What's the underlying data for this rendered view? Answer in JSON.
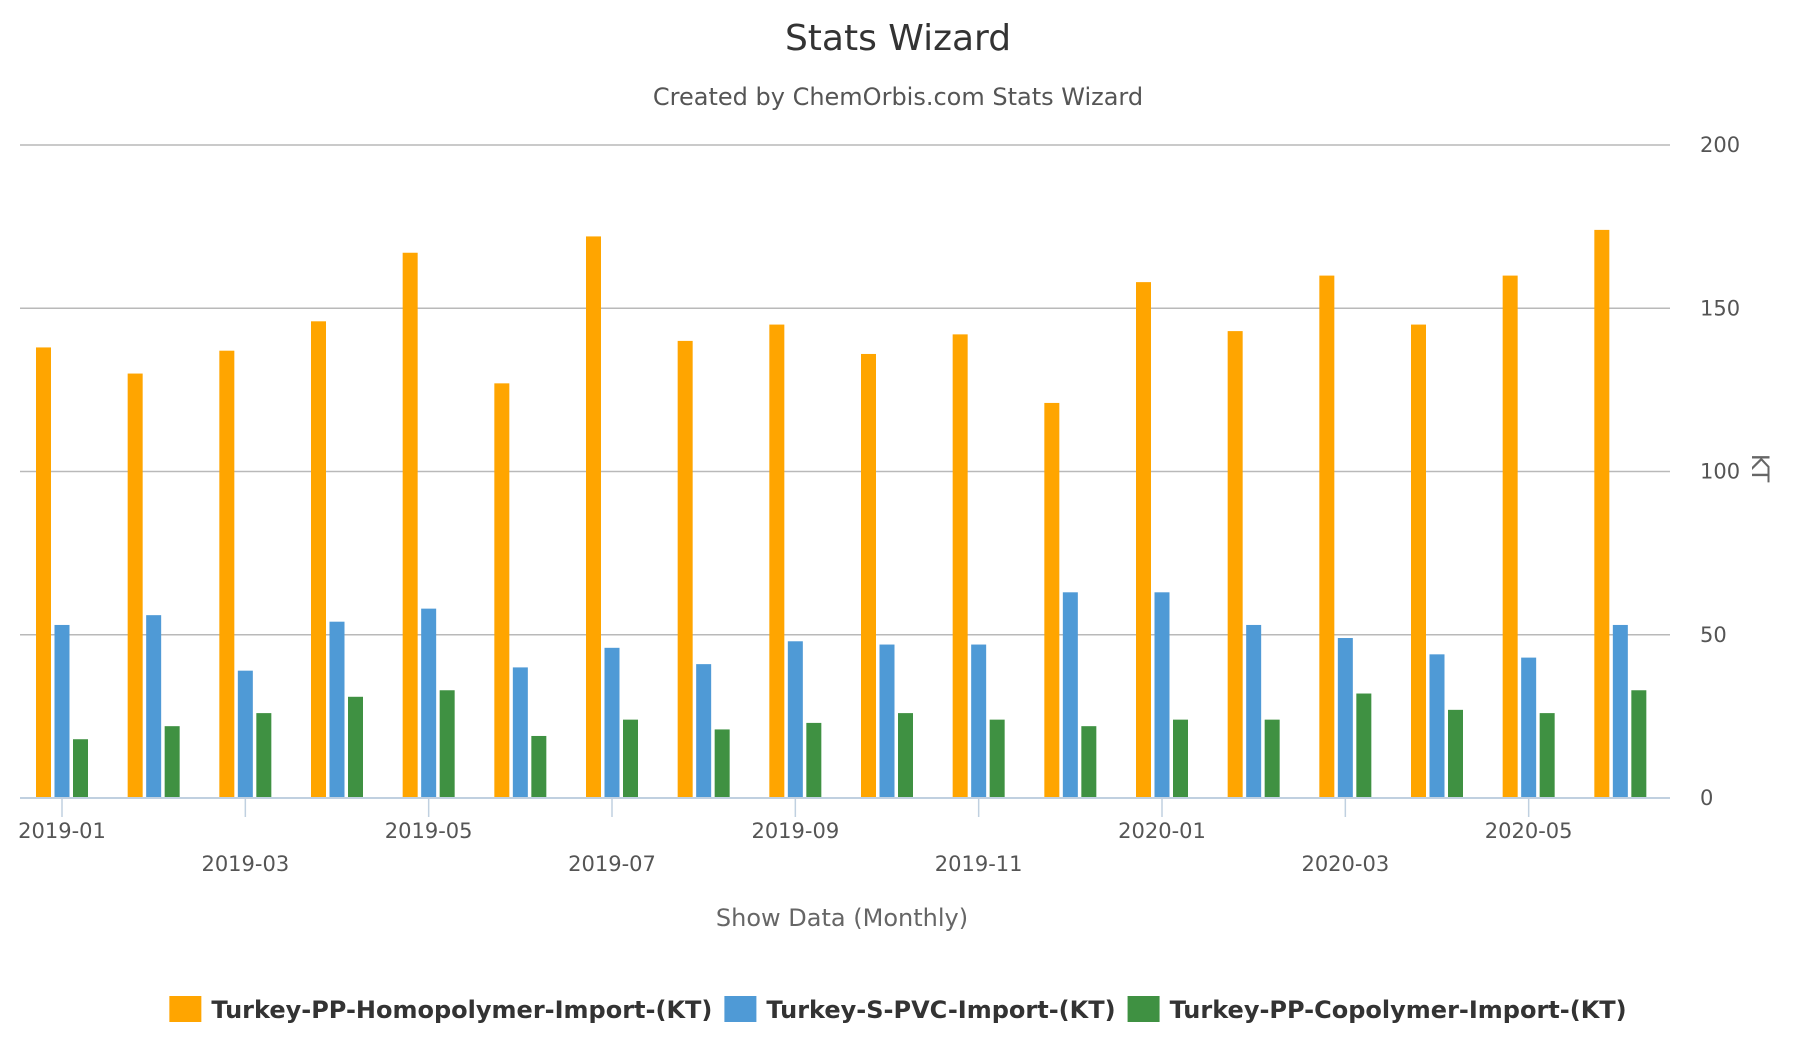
{
  "chart_data": {
    "type": "bar",
    "title": "Stats Wizard",
    "subtitle": "Created by ChemOrbis.com Stats Wizard",
    "xlabel": "Show Data (Monthly)",
    "ylabel": "KT",
    "ylim": [
      0,
      200
    ],
    "y_ticks": [
      0,
      50,
      100,
      150,
      200
    ],
    "y_axis_side": "right",
    "grid": true,
    "legend_position": "bottom-center",
    "categories": [
      "2019-01",
      "2019-02",
      "2019-03",
      "2019-04",
      "2019-05",
      "2019-06",
      "2019-07",
      "2019-08",
      "2019-09",
      "2019-10",
      "2019-11",
      "2019-12",
      "2020-01",
      "2020-02",
      "2020-03",
      "2020-04",
      "2020-05",
      "2020-06"
    ],
    "x_tick_labels": [
      {
        "category": "2019-01",
        "label": "2019-01",
        "row": 1
      },
      {
        "category": "2019-03",
        "label": "2019-03",
        "row": 2
      },
      {
        "category": "2019-05",
        "label": "2019-05",
        "row": 1
      },
      {
        "category": "2019-07",
        "label": "2019-07",
        "row": 2
      },
      {
        "category": "2019-09",
        "label": "2019-09",
        "row": 1
      },
      {
        "category": "2019-11",
        "label": "2019-11",
        "row": 2
      },
      {
        "category": "2020-01",
        "label": "2020-01",
        "row": 1
      },
      {
        "category": "2020-03",
        "label": "2020-03",
        "row": 2
      },
      {
        "category": "2020-05",
        "label": "2020-05",
        "row": 1
      }
    ],
    "series": [
      {
        "name": "Turkey-PP-Homopolymer-Import-(KT)",
        "color": "#FFA500",
        "values": [
          138,
          130,
          137,
          146,
          167,
          127,
          172,
          140,
          145,
          136,
          142,
          121,
          158,
          143,
          160,
          145,
          160,
          174
        ]
      },
      {
        "name": "Turkey-S-PVC-Import-(KT)",
        "color": "#4F9AD6",
        "values": [
          53,
          56,
          39,
          54,
          58,
          40,
          46,
          41,
          48,
          47,
          47,
          63,
          63,
          53,
          49,
          44,
          43,
          53
        ]
      },
      {
        "name": "Turkey-PP-Copolymer-Import-(KT)",
        "color": "#3F9142",
        "values": [
          18,
          22,
          26,
          31,
          33,
          19,
          24,
          21,
          23,
          26,
          24,
          22,
          24,
          24,
          32,
          27,
          26,
          33
        ]
      }
    ]
  }
}
